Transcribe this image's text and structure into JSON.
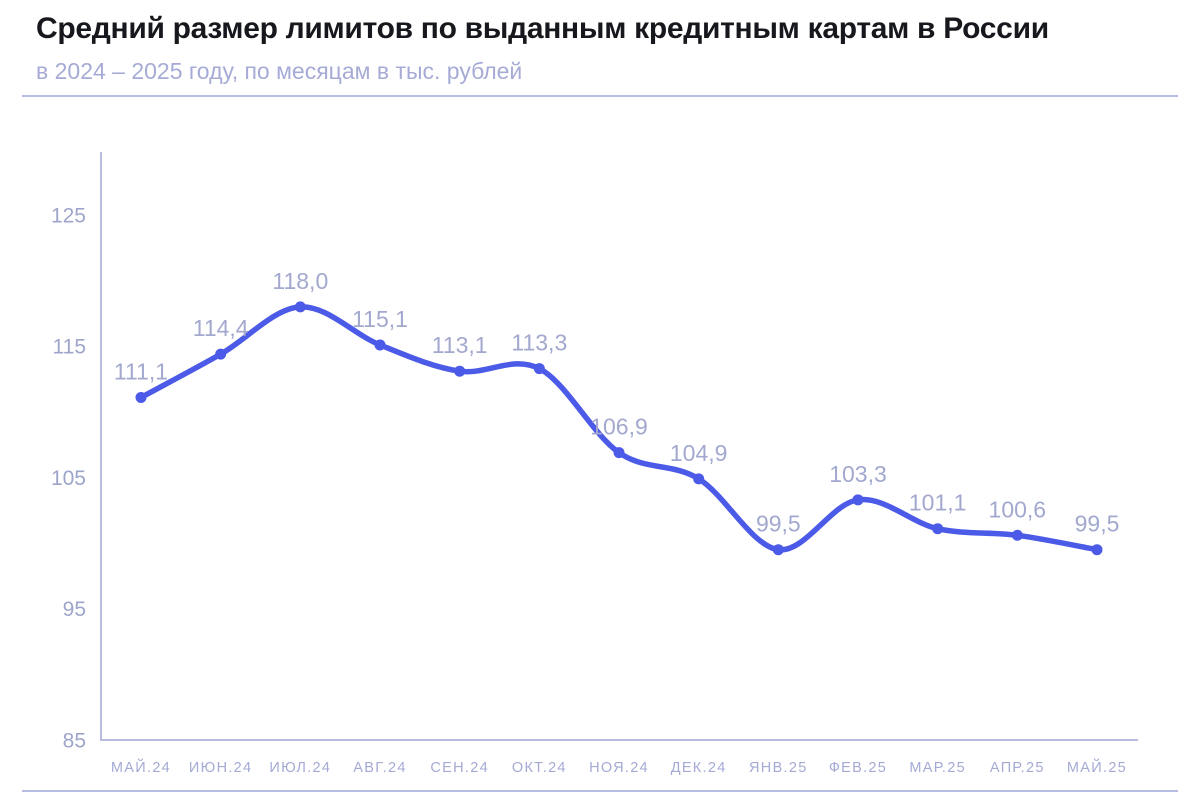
{
  "header": {
    "title": "Средний размер лимитов по выданным кредитным картам в России",
    "subtitle": "в 2024 – 2025 году, по месяцам в тыс. рублей"
  },
  "chart_data": {
    "type": "line",
    "title": "Средний размер лимитов по выданным кредитным картам в России",
    "subtitle": "в 2024 – 2025 году, по месяцам в тыс. рублей",
    "categories": [
      "МАЙ.24",
      "ИЮН.24",
      "ИЮЛ.24",
      "АВГ.24",
      "СЕН.24",
      "ОКТ.24",
      "НОЯ.24",
      "ДЕК.24",
      "ЯНВ.25",
      "ФЕВ.25",
      "МАР.25",
      "АПР.25",
      "МАЙ.25"
    ],
    "values": [
      111.1,
      114.4,
      118.0,
      115.1,
      113.1,
      113.3,
      106.9,
      104.9,
      99.5,
      103.3,
      101.1,
      100.6,
      99.5
    ],
    "point_labels": [
      "111,1",
      "114,4",
      "118,0",
      "115,1",
      "113,1",
      "113,3",
      "106,9",
      "104,9",
      "99,5",
      "103,3",
      "101,1",
      "100,6",
      "99,5"
    ],
    "xlabel": "",
    "ylabel": "",
    "y_ticks": [
      125,
      115,
      105,
      95,
      85
    ],
    "ylim": [
      85,
      129.8
    ],
    "grid": false,
    "legend": "none",
    "line_smooth": true,
    "colors": {
      "line": "#4c5ae8",
      "point": "#4c5ae8",
      "point_label": "#a2a8ce",
      "y_tick_label": "#9fa5cb",
      "y_tick": "#9ea5cb",
      "x_tick": "#a4aad4",
      "axis": "#b8bcdf",
      "title": "#17181d",
      "subtitle": "#a6abd6",
      "divider": "#aab0de"
    }
  }
}
